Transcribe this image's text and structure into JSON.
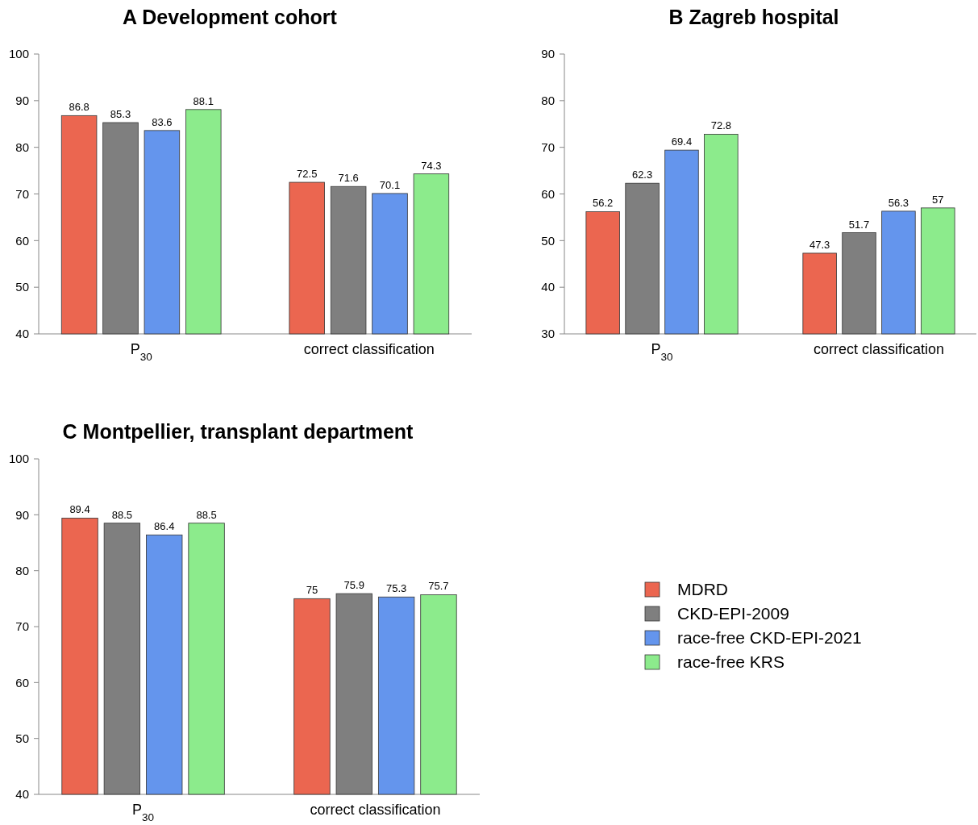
{
  "chart_data": [
    {
      "type": "bar",
      "title": "A Development cohort",
      "categories": [
        "P$_{30}$",
        "correct classification"
      ],
      "ylim": [
        40,
        100
      ],
      "yticks": [
        40,
        50,
        60,
        70,
        80,
        90,
        100
      ],
      "data_labels": true,
      "series": [
        {
          "color": "#eb6650",
          "values": [
            86.8,
            72.5
          ]
        },
        {
          "color": "#7f7f7f",
          "values": [
            85.3,
            71.6
          ]
        },
        {
          "color": "#6495ed",
          "values": [
            83.6,
            70.1
          ]
        },
        {
          "color": "#8ceb8c",
          "values": [
            88.1,
            74.3
          ]
        }
      ]
    },
    {
      "type": "bar",
      "title": "B Zagreb hospital",
      "categories": [
        "P$_{30}$",
        "correct classification"
      ],
      "ylim": [
        30,
        90
      ],
      "yticks": [
        30,
        40,
        50,
        60,
        70,
        80,
        90
      ],
      "data_labels": true,
      "series": [
        {
          "color": "#eb6650",
          "values": [
            56.2,
            47.3
          ]
        },
        {
          "color": "#7f7f7f",
          "values": [
            62.3,
            51.7
          ]
        },
        {
          "color": "#6495ed",
          "values": [
            69.4,
            56.3
          ]
        },
        {
          "color": "#8ceb8c",
          "values": [
            72.8,
            57
          ]
        }
      ]
    },
    {
      "type": "bar",
      "title": "C Montpellier, transplant department",
      "categories": [
        "P$_{30}$",
        "correct classification"
      ],
      "ylim": [
        40,
        100
      ],
      "yticks": [
        40,
        50,
        60,
        70,
        80,
        90,
        100
      ],
      "data_labels": true,
      "legend": "right",
      "series": [
        {
          "name": "MDRD",
          "color": "#eb6650",
          "values": [
            89.4,
            75
          ]
        },
        {
          "name": "CKD-EPI-2009",
          "color": "#7f7f7f",
          "values": [
            88.5,
            75.9
          ]
        },
        {
          "name": "race-free CKD-EPI-2021",
          "color": "#6495ed",
          "values": [
            86.4,
            75.3
          ]
        },
        {
          "name": "race-free KRS",
          "color": "#8ceb8c",
          "values": [
            88.5,
            75.7
          ]
        }
      ]
    }
  ]
}
